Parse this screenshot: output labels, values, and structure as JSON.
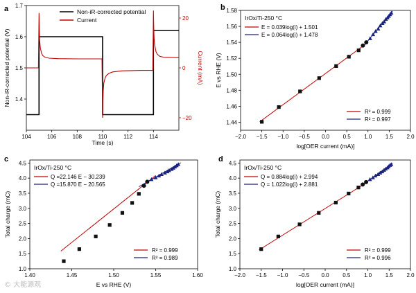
{
  "figure": {
    "watermark": "© 大能源观"
  },
  "chart_data": [
    {
      "id": "a",
      "panel_label": "a",
      "type": "line",
      "xlabel": "Time (s)",
      "ylabel_left": "Non-iR-corrected potential (V)",
      "ylabel_right": "Current (mA)",
      "xlim": [
        104,
        116
      ],
      "ylim_left": [
        1.3,
        1.7
      ],
      "ylim_right": [
        -25,
        25
      ],
      "xticks": [
        104,
        106,
        108,
        110,
        112,
        114
      ],
      "yticks_left": [
        1.4,
        1.5,
        1.6,
        1.7
      ],
      "yticks_right": [
        -20,
        0,
        20
      ],
      "legend": [
        "Non-iR-corrected potential",
        "Current"
      ],
      "colors": {
        "potential": "#000000",
        "current": "#c00000"
      },
      "series": [
        {
          "name": "Non-iR-corrected potential",
          "axis": "left",
          "x": [
            104,
            105,
            105,
            110,
            110,
            114,
            114,
            116
          ],
          "y": [
            1.35,
            1.35,
            1.6,
            1.6,
            1.35,
            1.35,
            1.62,
            1.62
          ]
        },
        {
          "name": "Current",
          "axis": "right",
          "x": [
            104,
            104.9,
            104.95,
            105,
            105.02,
            105.05,
            105.1,
            105.2,
            105.3,
            105.5,
            105.8,
            106.5,
            108,
            109.9,
            109.95,
            110,
            110.02,
            110.05,
            110.1,
            110.2,
            110.3,
            110.5,
            110.8,
            111.5,
            113,
            113.9,
            113.95,
            114,
            114.02,
            114.05,
            114.1,
            114.2,
            114.3,
            114.5,
            114.8,
            116
          ],
          "y": [
            0,
            0,
            0,
            22,
            16,
            11,
            8,
            5.8,
            4.9,
            4.2,
            3.9,
            3.7,
            3.6,
            3.6,
            3.6,
            -20,
            -14,
            -9,
            -6,
            -4,
            -3,
            -2.2,
            -1.6,
            -1.2,
            -1,
            -1,
            -1,
            23,
            17,
            12,
            9,
            6.5,
            5.5,
            4.6,
            4.3,
            4.1
          ]
        }
      ]
    },
    {
      "id": "b",
      "panel_label": "b",
      "type": "scatter",
      "title": "IrOx/Ti-250 °C",
      "xlabel": "log[OER current (mA)]",
      "ylabel": "E vs RHE (V)",
      "xlim": [
        -2.0,
        2.0
      ],
      "ylim": [
        1.43,
        1.58
      ],
      "xticks": [
        -2.0,
        -1.5,
        -1.0,
        -0.5,
        0.0,
        0.5,
        1.0,
        1.5,
        2.0
      ],
      "yticks": [
        1.44,
        1.46,
        1.48,
        1.5,
        1.52,
        1.54,
        1.56,
        1.58
      ],
      "fit_labels": [
        "E = 0.039log(i) + 1.501",
        "E = 0.064log(i) + 1.478"
      ],
      "r2_labels": [
        "R² = 0.999",
        "R² = 0.997"
      ],
      "fits": [
        {
          "color": "#c00000",
          "slope": 0.039,
          "intercept": 1.501,
          "x_range": [
            -1.55,
            1.0
          ]
        },
        {
          "color": "#1a237e",
          "slope": 0.064,
          "intercept": 1.478,
          "x_range": [
            0.88,
            1.58
          ]
        }
      ],
      "squares": {
        "x": [
          -1.5,
          -1.1,
          -0.6,
          -0.15,
          0.25,
          0.55,
          0.78
        ],
        "y": [
          1.4405,
          1.459,
          1.4786,
          1.4952,
          1.5103,
          1.522,
          1.53
        ]
      },
      "circles": {
        "x": [
          0.88,
          0.96
        ],
        "y": [
          1.536,
          1.54
        ]
      },
      "triangles": {
        "x": [
          1.05,
          1.12,
          1.18,
          1.24,
          1.29,
          1.34,
          1.38,
          1.42,
          1.46,
          1.49,
          1.52,
          1.55
        ],
        "y": [
          1.545,
          1.55,
          1.554,
          1.557,
          1.561,
          1.564,
          1.566,
          1.569,
          1.571,
          1.573,
          1.575,
          1.577
        ]
      }
    },
    {
      "id": "c",
      "panel_label": "c",
      "type": "scatter",
      "title": "IrOx/Ti-250 °C",
      "xlabel": "E vs RHE (V)",
      "ylabel": "Total charge (mC)",
      "xlim": [
        1.4,
        1.6
      ],
      "ylim": [
        1.0,
        4.6
      ],
      "xticks": [
        1.4,
        1.45,
        1.5,
        1.55,
        1.6
      ],
      "yticks": [
        1.0,
        1.5,
        2.0,
        2.5,
        3.0,
        3.5,
        4.0,
        4.5
      ],
      "fit_labels": [
        "Q =22.146 E − 30.239",
        "Q =15.870 E − 20.565"
      ],
      "r2_labels": [
        "R² = 0.999",
        "R² = 0.989"
      ],
      "fits": [
        {
          "color": "#c00000",
          "slope": 22.146,
          "intercept": -30.239,
          "x_range": [
            1.437,
            1.55
          ]
        },
        {
          "color": "#1a237e",
          "slope": 15.87,
          "intercept": -20.565,
          "x_range": [
            1.53,
            1.58
          ]
        }
      ],
      "squares": {
        "x": [
          1.4405,
          1.459,
          1.4786,
          1.4952,
          1.5103,
          1.522,
          1.53
        ],
        "y": [
          1.25,
          1.65,
          2.07,
          2.45,
          2.85,
          3.18,
          3.48
        ]
      },
      "circles": {
        "x": [
          1.536,
          1.54
        ],
        "y": [
          3.75,
          3.88
        ]
      },
      "triangles": {
        "x": [
          1.545,
          1.55,
          1.554,
          1.557,
          1.561,
          1.564,
          1.566,
          1.569,
          1.571,
          1.573,
          1.575,
          1.577
        ],
        "y": [
          3.96,
          4.02,
          4.08,
          4.13,
          4.18,
          4.22,
          4.26,
          4.3,
          4.34,
          4.38,
          4.42,
          4.46
        ]
      }
    },
    {
      "id": "d",
      "panel_label": "d",
      "type": "scatter",
      "title": "IrOx/Ti-250 °C",
      "xlabel": "log[OER current (mA)]",
      "ylabel": "Total charge (mC)",
      "xlim": [
        -2.0,
        2.0
      ],
      "ylim": [
        1.0,
        4.6
      ],
      "xticks": [
        -2.0,
        -1.5,
        -1.0,
        -0.5,
        0.0,
        0.5,
        1.0,
        1.5,
        2.0
      ],
      "yticks": [
        1.0,
        1.5,
        2.0,
        2.5,
        3.0,
        3.5,
        4.0,
        4.5
      ],
      "fit_labels": [
        "Q = 0.884log(i) + 2.994",
        "Q = 1.022log(i) + 2.881"
      ],
      "r2_labels": [
        "R² = 0.999",
        "R² = 0.996"
      ],
      "fits": [
        {
          "color": "#c00000",
          "slope": 0.884,
          "intercept": 2.994,
          "x_range": [
            -1.55,
            1.0
          ]
        },
        {
          "color": "#1a237e",
          "slope": 1.022,
          "intercept": 2.881,
          "x_range": [
            0.88,
            1.58
          ]
        }
      ],
      "squares": {
        "x": [
          -1.5,
          -1.1,
          -0.6,
          -0.15,
          0.25,
          0.55,
          0.78
        ],
        "y": [
          1.65,
          2.07,
          2.47,
          2.85,
          3.19,
          3.49,
          3.69
        ]
      },
      "circles": {
        "x": [
          0.88,
          0.96
        ],
        "y": [
          3.79,
          3.87
        ]
      },
      "triangles": {
        "x": [
          1.05,
          1.12,
          1.18,
          1.24,
          1.29,
          1.34,
          1.38,
          1.42,
          1.46,
          1.49,
          1.52,
          1.55
        ],
        "y": [
          3.96,
          4.02,
          4.08,
          4.13,
          4.18,
          4.22,
          4.27,
          4.31,
          4.35,
          4.39,
          4.43,
          4.46
        ]
      }
    }
  ]
}
